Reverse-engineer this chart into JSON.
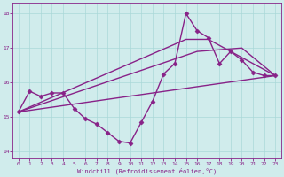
{
  "xlabel": "Windchill (Refroidissement éolien,°C)",
  "background_color": "#d0ecec",
  "grid_color": "#aad8d8",
  "line_color": "#882288",
  "xlim": [
    -0.5,
    23.5
  ],
  "ylim": [
    13.8,
    18.3
  ],
  "xticks": [
    0,
    1,
    2,
    3,
    4,
    5,
    6,
    7,
    8,
    9,
    10,
    11,
    12,
    13,
    14,
    15,
    16,
    17,
    18,
    19,
    20,
    21,
    22,
    23
  ],
  "yticks": [
    14,
    15,
    16,
    17,
    18
  ],
  "hours": [
    0,
    1,
    2,
    3,
    4,
    5,
    6,
    7,
    8,
    9,
    10,
    11,
    12,
    13,
    14,
    15,
    16,
    17,
    18,
    19,
    20,
    21,
    22,
    23
  ],
  "main_line": [
    15.15,
    15.75,
    15.6,
    15.7,
    15.7,
    15.25,
    14.95,
    14.8,
    14.55,
    14.3,
    14.25,
    14.85,
    15.45,
    16.25,
    16.55,
    18.0,
    17.5,
    17.3,
    16.55,
    16.9,
    16.65,
    16.3,
    16.2,
    16.2
  ],
  "trend1_x": [
    0,
    15,
    17,
    23
  ],
  "trend1_y": [
    15.15,
    17.25,
    17.25,
    16.2
  ],
  "trend2_x": [
    0,
    16,
    20,
    23
  ],
  "trend2_y": [
    15.15,
    16.9,
    17.0,
    16.2
  ],
  "trend3_x": [
    0,
    23
  ],
  "trend3_y": [
    15.15,
    16.2
  ],
  "marker": "D",
  "marker_size": 2.5,
  "line_width": 1.0
}
